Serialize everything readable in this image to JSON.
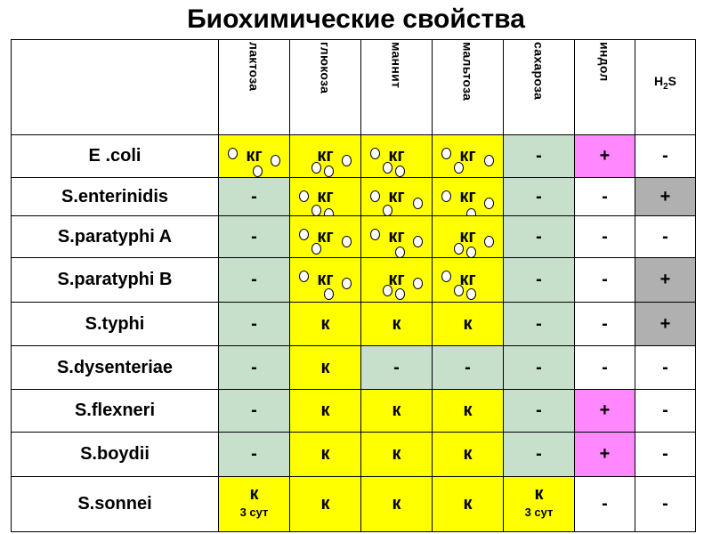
{
  "title": "Биохимические свойства",
  "columns": [
    "лактоза",
    "глюкоза",
    "маннит",
    "мальтоза",
    "сахароза",
    "индол",
    "H2S"
  ],
  "h2s": {
    "base": "H",
    "sub": "2",
    "tail": "S"
  },
  "colors": {
    "yellow": "#ffff00",
    "green": "#c6e0cc",
    "pink": "#ff88ff",
    "gray": "#b0b0b0",
    "white": "#ffffff"
  },
  "rows": [
    {
      "organism": "E .coli",
      "cells": [
        {
          "v": "кг",
          "c": "yellow",
          "b": true
        },
        {
          "v": "кг",
          "c": "yellow",
          "b": true
        },
        {
          "v": "кг",
          "c": "yellow",
          "b": true
        },
        {
          "v": "кг",
          "c": "yellow",
          "b": true
        },
        {
          "v": "-",
          "c": "green"
        },
        {
          "v": "+",
          "c": "pink"
        },
        {
          "v": "-",
          "c": "white"
        }
      ]
    },
    {
      "organism": "S.enterinidis",
      "cells": [
        {
          "v": "-",
          "c": "green"
        },
        {
          "v": "кг",
          "c": "yellow",
          "b": true
        },
        {
          "v": "кг",
          "c": "yellow",
          "b": true
        },
        {
          "v": "кг",
          "c": "yellow",
          "b": true
        },
        {
          "v": "-",
          "c": "green"
        },
        {
          "v": "-",
          "c": "white"
        },
        {
          "v": "+",
          "c": "gray"
        }
      ]
    },
    {
      "organism": "S.paratyphi A",
      "cells": [
        {
          "v": "-",
          "c": "green"
        },
        {
          "v": "кг",
          "c": "yellow",
          "b": true
        },
        {
          "v": "кг",
          "c": "yellow",
          "b": true
        },
        {
          "v": "кг",
          "c": "yellow",
          "b": true
        },
        {
          "v": "-",
          "c": "green"
        },
        {
          "v": "-",
          "c": "white"
        },
        {
          "v": "-",
          "c": "white"
        }
      ]
    },
    {
      "organism": "S.paratyphi B",
      "cells": [
        {
          "v": "-",
          "c": "green"
        },
        {
          "v": "кг",
          "c": "yellow",
          "b": true
        },
        {
          "v": "кг",
          "c": "yellow",
          "b": true
        },
        {
          "v": "кг",
          "c": "yellow",
          "b": true
        },
        {
          "v": "-",
          "c": "green"
        },
        {
          "v": "-",
          "c": "white"
        },
        {
          "v": "+",
          "c": "gray"
        }
      ]
    },
    {
      "organism": "S.typhi",
      "cells": [
        {
          "v": "-",
          "c": "green"
        },
        {
          "v": "к",
          "c": "yellow"
        },
        {
          "v": "к",
          "c": "yellow"
        },
        {
          "v": "к",
          "c": "yellow"
        },
        {
          "v": "-",
          "c": "green"
        },
        {
          "v": "-",
          "c": "white"
        },
        {
          "v": "+",
          "c": "gray"
        }
      ]
    },
    {
      "organism": "S.dysenteriae",
      "cells": [
        {
          "v": "-",
          "c": "green"
        },
        {
          "v": "к",
          "c": "yellow"
        },
        {
          "v": "-",
          "c": "green"
        },
        {
          "v": "-",
          "c": "green"
        },
        {
          "v": "-",
          "c": "green"
        },
        {
          "v": "-",
          "c": "white"
        },
        {
          "v": "-",
          "c": "white"
        }
      ]
    },
    {
      "organism": "S.flexneri",
      "cells": [
        {
          "v": "-",
          "c": "green"
        },
        {
          "v": "к",
          "c": "yellow"
        },
        {
          "v": "к",
          "c": "yellow"
        },
        {
          "v": "к",
          "c": "yellow"
        },
        {
          "v": "-",
          "c": "green"
        },
        {
          "v": "+",
          "c": "pink"
        },
        {
          "v": "-",
          "c": "white"
        }
      ]
    },
    {
      "organism": "S.boydii",
      "cells": [
        {
          "v": "-",
          "c": "green"
        },
        {
          "v": "к",
          "c": "yellow"
        },
        {
          "v": "к",
          "c": "yellow"
        },
        {
          "v": "к",
          "c": "yellow"
        },
        {
          "v": "-",
          "c": "green"
        },
        {
          "v": "+",
          "c": "pink"
        },
        {
          "v": "-",
          "c": "white"
        }
      ]
    },
    {
      "organism": "S.sonnei",
      "cells": [
        {
          "v": "к",
          "c": "yellow",
          "sub": "3 сут"
        },
        {
          "v": "к",
          "c": "yellow"
        },
        {
          "v": "к",
          "c": "yellow"
        },
        {
          "v": "к",
          "c": "yellow"
        },
        {
          "v": "к",
          "c": "yellow",
          "sub": "3 сут"
        },
        {
          "v": "-",
          "c": "white"
        },
        {
          "v": "-",
          "c": "white"
        }
      ]
    }
  ]
}
